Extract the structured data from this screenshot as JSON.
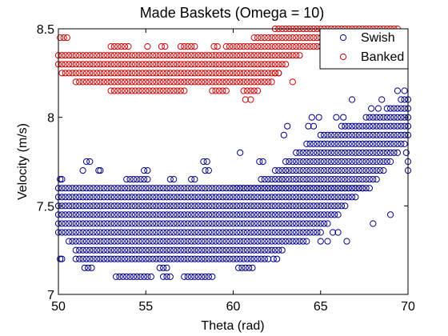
{
  "chart_data": {
    "type": "scatter",
    "title": "Made Baskets (Omega = 10)",
    "xlabel": "Theta (rad)",
    "ylabel": "Velocity (m/s)",
    "xlim": [
      50,
      70
    ],
    "ylim": [
      7,
      8.5
    ],
    "xticks": [
      "50",
      "55",
      "60",
      "65",
      "70"
    ],
    "yticks": [
      "7",
      "7.5",
      "8",
      "8.5"
    ],
    "grid": false,
    "legend_position": "top-right",
    "marker": "open-circle",
    "series": [
      {
        "name": "Swish",
        "color": "#00008b",
        "points": [
          [
            50.1,
            7.2
          ],
          [
            50.2,
            7.2
          ],
          [
            50.1,
            7.65
          ],
          [
            50.2,
            7.65
          ],
          [
            51.5,
            7.15
          ],
          [
            51.7,
            7.15
          ],
          [
            51.9,
            7.15
          ],
          [
            51.4,
            7.7
          ],
          [
            51.6,
            7.75
          ],
          [
            51.8,
            7.75
          ],
          [
            52.3,
            7.7
          ],
          [
            52.4,
            7.7
          ],
          [
            53.3,
            7.1
          ],
          [
            53.5,
            7.1
          ],
          [
            53.7,
            7.1
          ],
          [
            53.9,
            7.1
          ],
          [
            54.1,
            7.1
          ],
          [
            54.3,
            7.1
          ],
          [
            54.5,
            7.1
          ],
          [
            54.7,
            7.1
          ],
          [
            54.9,
            7.1
          ],
          [
            55.1,
            7.1
          ],
          [
            55.3,
            7.1
          ],
          [
            53.9,
            7.65
          ],
          [
            54.1,
            7.65
          ],
          [
            54.3,
            7.65
          ],
          [
            54.5,
            7.65
          ],
          [
            54.7,
            7.65
          ],
          [
            54.9,
            7.65
          ],
          [
            55.1,
            7.65
          ],
          [
            54.9,
            7.7
          ],
          [
            55.1,
            7.7
          ],
          [
            55.8,
            7.15
          ],
          [
            56.0,
            7.15
          ],
          [
            56.2,
            7.15
          ],
          [
            56.0,
            7.1
          ],
          [
            56.2,
            7.1
          ],
          [
            56.4,
            7.1
          ],
          [
            56.4,
            7.65
          ],
          [
            56.6,
            7.65
          ],
          [
            57.2,
            7.1
          ],
          [
            57.4,
            7.1
          ],
          [
            57.6,
            7.1
          ],
          [
            57.8,
            7.1
          ],
          [
            58.0,
            7.1
          ],
          [
            58.2,
            7.1
          ],
          [
            58.4,
            7.1
          ],
          [
            58.6,
            7.1
          ],
          [
            58.8,
            7.1
          ],
          [
            57.6,
            7.65
          ],
          [
            57.8,
            7.65
          ],
          [
            58.3,
            7.75
          ],
          [
            58.5,
            7.75
          ],
          [
            58.4,
            7.7
          ],
          [
            58.6,
            7.7
          ],
          [
            60.4,
            7.8
          ],
          [
            60.3,
            7.15
          ],
          [
            60.5,
            7.15
          ],
          [
            60.7,
            7.15
          ],
          [
            60.9,
            7.15
          ],
          [
            61.1,
            7.15
          ],
          [
            61.5,
            7.75
          ],
          [
            61.7,
            7.75
          ],
          [
            62.3,
            7.2
          ],
          [
            62.5,
            7.2
          ],
          [
            62.8,
            7.65
          ],
          [
            63.0,
            7.7
          ],
          [
            62.9,
            7.9
          ],
          [
            63.1,
            7.95
          ],
          [
            64.3,
            7.95
          ],
          [
            64.6,
            7.95
          ],
          [
            64.5,
            8.0
          ],
          [
            64.9,
            8.0
          ],
          [
            65.9,
            8.0
          ],
          [
            66.3,
            8.0
          ],
          [
            66.8,
            8.1
          ],
          [
            67.9,
            8.05
          ],
          [
            68.3,
            8.05
          ],
          [
            68.5,
            8.1
          ],
          [
            69.4,
            8.15
          ],
          [
            69.8,
            8.15
          ],
          [
            70.0,
            7.75
          ],
          [
            69.9,
            7.8
          ],
          [
            70.0,
            7.7
          ],
          [
            66.5,
            7.3
          ],
          [
            68.0,
            7.4
          ],
          [
            69.0,
            7.45
          ],
          [
            65.0,
            7.3
          ],
          [
            65.4,
            7.3
          ],
          [
            65.7,
            7.35
          ],
          [
            66.0,
            7.35
          ]
        ],
        "bands": [
          {
            "y": 7.2,
            "x0": 51.0,
            "x1": 62.0
          },
          {
            "y": 7.25,
            "x0": 51.0,
            "x1": 62.8
          },
          {
            "y": 7.3,
            "x0": 50.6,
            "x1": 64.2
          },
          {
            "y": 7.35,
            "x0": 50.0,
            "x1": 65.0
          },
          {
            "y": 7.4,
            "x0": 50.0,
            "x1": 65.4
          },
          {
            "y": 7.45,
            "x0": 50.0,
            "x1": 66.0
          },
          {
            "y": 7.5,
            "x0": 50.0,
            "x1": 66.4
          },
          {
            "y": 7.55,
            "x0": 50.0,
            "x1": 67.0
          },
          {
            "y": 7.6,
            "x0": 50.0,
            "x1": 67.4
          },
          {
            "y": 7.6,
            "x0": 60.0,
            "x1": 67.8
          },
          {
            "y": 7.65,
            "x0": 61.6,
            "x1": 68.2
          },
          {
            "y": 7.7,
            "x0": 62.4,
            "x1": 68.6
          },
          {
            "y": 7.75,
            "x0": 63.0,
            "x1": 69.0
          },
          {
            "y": 7.8,
            "x0": 63.6,
            "x1": 69.4
          },
          {
            "y": 7.85,
            "x0": 64.2,
            "x1": 69.8
          },
          {
            "y": 7.9,
            "x0": 65.0,
            "x1": 70.0
          },
          {
            "y": 7.95,
            "x0": 66.2,
            "x1": 70.0
          },
          {
            "y": 8.0,
            "x0": 67.6,
            "x1": 70.0
          },
          {
            "y": 8.05,
            "x0": 68.8,
            "x1": 70.0
          },
          {
            "y": 8.1,
            "x0": 69.6,
            "x1": 70.0
          }
        ]
      },
      {
        "name": "Banked",
        "color": "#cc0000",
        "points": [
          [
            50.1,
            8.45
          ],
          [
            50.3,
            8.45
          ],
          [
            50.5,
            8.45
          ],
          [
            53.0,
            8.4
          ],
          [
            53.2,
            8.4
          ],
          [
            53.4,
            8.4
          ],
          [
            53.6,
            8.4
          ],
          [
            53.8,
            8.4
          ],
          [
            54.0,
            8.4
          ],
          [
            55.1,
            8.4
          ],
          [
            55.9,
            8.4
          ],
          [
            56.1,
            8.4
          ],
          [
            57.0,
            8.4
          ],
          [
            57.2,
            8.4
          ],
          [
            57.4,
            8.4
          ],
          [
            57.6,
            8.4
          ],
          [
            57.8,
            8.4
          ],
          [
            58.9,
            8.4
          ],
          [
            59.1,
            8.4
          ],
          [
            62.4,
            8.25
          ],
          [
            62.6,
            8.25
          ],
          [
            63.4,
            8.2
          ],
          [
            60.7,
            8.1
          ],
          [
            61.0,
            8.1
          ]
        ],
        "bands": [
          {
            "y": 8.15,
            "x0": 53.0,
            "x1": 57.2
          },
          {
            "y": 8.15,
            "x0": 58.8,
            "x1": 59.6
          },
          {
            "y": 8.15,
            "x0": 60.6,
            "x1": 61.4
          },
          {
            "y": 8.2,
            "x0": 51.0,
            "x1": 62.2
          },
          {
            "y": 8.25,
            "x0": 50.2,
            "x1": 62.6
          },
          {
            "y": 8.3,
            "x0": 50.0,
            "x1": 63.0
          },
          {
            "y": 8.35,
            "x0": 50.0,
            "x1": 63.8
          },
          {
            "y": 8.4,
            "x0": 59.6,
            "x1": 66.0
          },
          {
            "y": 8.45,
            "x0": 61.2,
            "x1": 67.6
          },
          {
            "y": 8.5,
            "x0": 62.4,
            "x1": 69.4
          }
        ]
      }
    ]
  }
}
